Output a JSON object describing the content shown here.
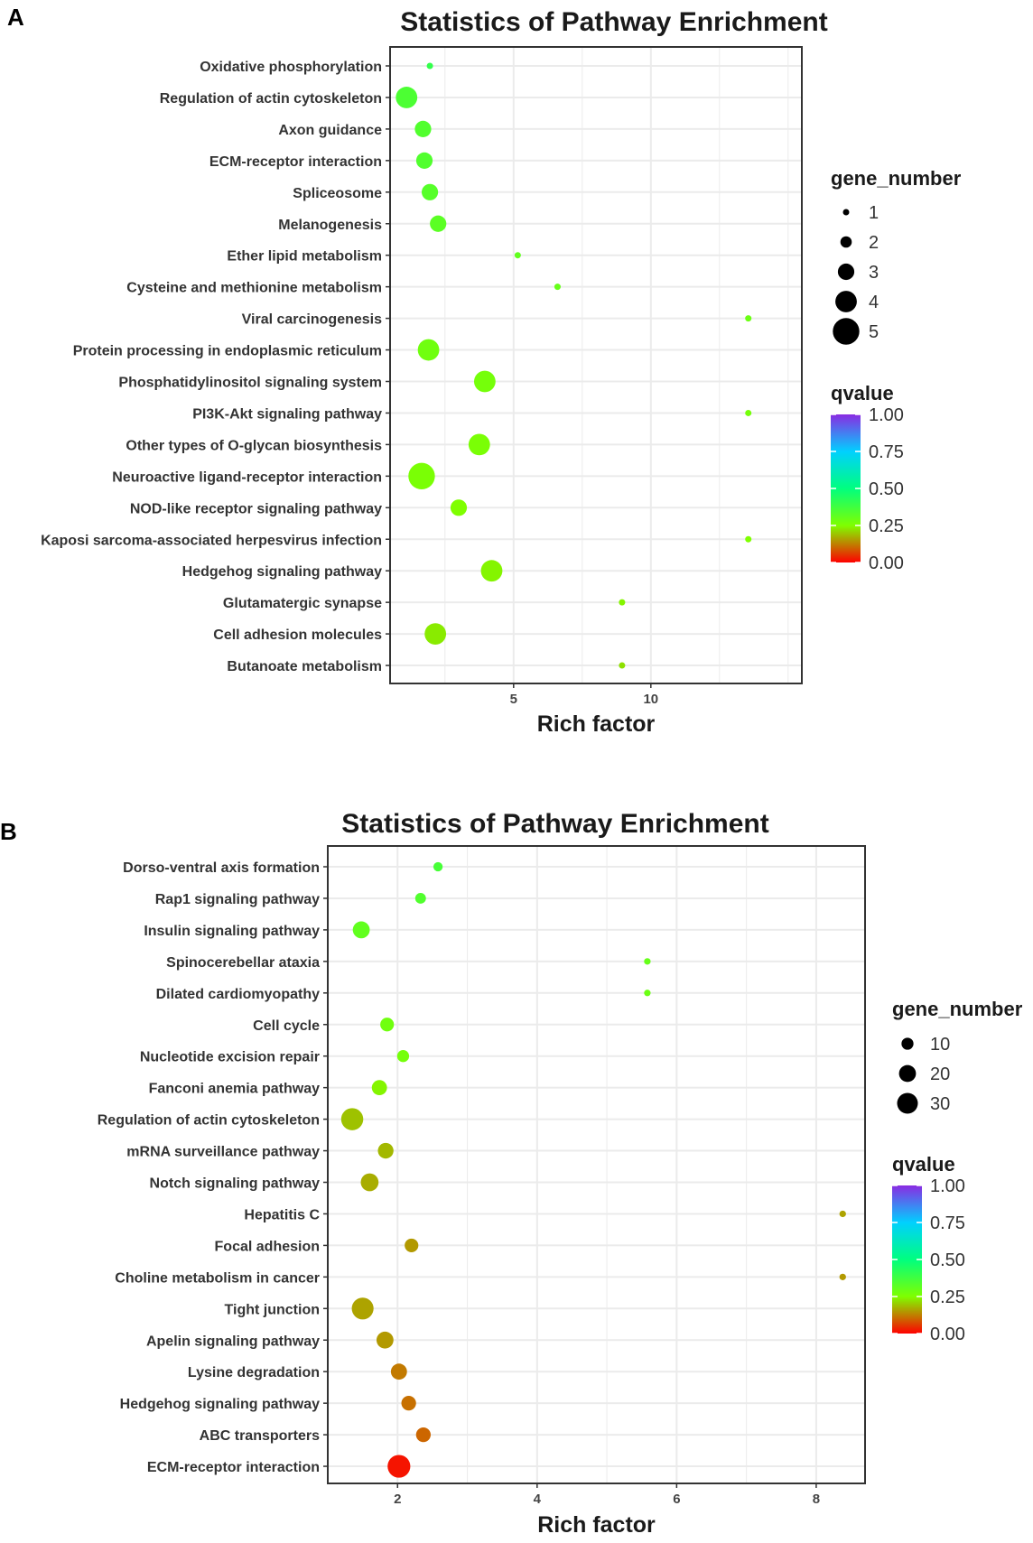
{
  "chart_data": [
    {
      "panel": "A",
      "type": "scatter",
      "title": "Statistics of Pathway Enrichment",
      "xlabel": "Rich factor",
      "ylabel": "",
      "xlim": [
        0.5,
        15.5
      ],
      "xticks": [
        5,
        10
      ],
      "grid": true,
      "categories": [
        "Oxidative phosphorylation",
        "Regulation of actin cytoskeleton",
        "Axon guidance",
        "ECM-receptor interaction",
        "Spliceosome",
        "Melanogenesis",
        "Ether lipid metabolism",
        "Cysteine and methionine metabolism",
        "Viral carcinogenesis",
        "Protein processing in endoplasmic reticulum",
        "Phosphatidylinositol signaling system",
        "PI3K-Akt signaling pathway",
        "Other types of O-glycan biosynthesis",
        "Neuroactive ligand-receptor interaction",
        "NOD-like receptor signaling pathway",
        "Kaposi sarcoma-associated herpesvirus infection",
        "Hedgehog signaling pathway",
        "Glutamatergic synapse",
        "Cell adhesion molecules",
        "Butanoate metabolism"
      ],
      "points": [
        {
          "x": 1.95,
          "gene_number": 1,
          "qvalue": 0.4
        },
        {
          "x": 1.1,
          "gene_number": 4,
          "qvalue": 0.35
        },
        {
          "x": 1.7,
          "gene_number": 3,
          "qvalue": 0.34
        },
        {
          "x": 1.75,
          "gene_number": 3,
          "qvalue": 0.34
        },
        {
          "x": 1.95,
          "gene_number": 3,
          "qvalue": 0.33
        },
        {
          "x": 2.25,
          "gene_number": 3,
          "qvalue": 0.32
        },
        {
          "x": 5.15,
          "gene_number": 1,
          "qvalue": 0.31
        },
        {
          "x": 6.6,
          "gene_number": 1,
          "qvalue": 0.3
        },
        {
          "x": 13.55,
          "gene_number": 1,
          "qvalue": 0.29
        },
        {
          "x": 1.9,
          "gene_number": 4,
          "qvalue": 0.28
        },
        {
          "x": 3.95,
          "gene_number": 4,
          "qvalue": 0.27
        },
        {
          "x": 13.55,
          "gene_number": 1,
          "qvalue": 0.27
        },
        {
          "x": 3.75,
          "gene_number": 4,
          "qvalue": 0.26
        },
        {
          "x": 1.65,
          "gene_number": 5,
          "qvalue": 0.26
        },
        {
          "x": 3.0,
          "gene_number": 3,
          "qvalue": 0.25
        },
        {
          "x": 13.55,
          "gene_number": 1,
          "qvalue": 0.25
        },
        {
          "x": 4.2,
          "gene_number": 4,
          "qvalue": 0.24
        },
        {
          "x": 8.95,
          "gene_number": 1,
          "qvalue": 0.24
        },
        {
          "x": 2.15,
          "gene_number": 4,
          "qvalue": 0.23
        },
        {
          "x": 8.95,
          "gene_number": 1,
          "qvalue": 0.22
        }
      ],
      "size_legend": {
        "title": "gene_number",
        "values": [
          1,
          2,
          3,
          4,
          5
        ]
      },
      "color_legend": {
        "title": "qvalue",
        "ticks": [
          "1.00",
          "0.75",
          "0.50",
          "0.25",
          "0.00"
        ]
      }
    },
    {
      "panel": "B",
      "type": "scatter",
      "title": "Statistics of Pathway Enrichment",
      "xlabel": "Rich factor",
      "ylabel": "",
      "xlim": [
        1.0,
        8.7
      ],
      "xticks": [
        2,
        4,
        6,
        8
      ],
      "grid": true,
      "categories": [
        "Dorso-ventral axis formation",
        "Rap1 signaling pathway",
        "Insulin signaling pathway",
        "Spinocerebellar ataxia",
        "Dilated cardiomyopathy",
        "Cell cycle",
        "Nucleotide excision repair",
        "Fanconi anemia pathway",
        "Regulation of actin cytoskeleton",
        "mRNA surveillance pathway",
        "Notch signaling pathway",
        "Hepatitis C",
        "Focal adhesion",
        "Choline metabolism in cancer",
        "Tight junction",
        "Apelin signaling pathway",
        "Lysine degradation",
        "Hedgehog signaling pathway",
        "ABC transporters",
        "ECM-receptor interaction"
      ],
      "points": [
        {
          "x": 2.58,
          "gene_number": 6,
          "qvalue": 0.36
        },
        {
          "x": 2.33,
          "gene_number": 8,
          "qvalue": 0.34
        },
        {
          "x": 1.48,
          "gene_number": 20,
          "qvalue": 0.31
        },
        {
          "x": 5.58,
          "gene_number": 3,
          "qvalue": 0.3
        },
        {
          "x": 5.58,
          "gene_number": 3,
          "qvalue": 0.29
        },
        {
          "x": 1.85,
          "gene_number": 13,
          "qvalue": 0.28
        },
        {
          "x": 2.08,
          "gene_number": 10,
          "qvalue": 0.27
        },
        {
          "x": 1.74,
          "gene_number": 16,
          "qvalue": 0.24
        },
        {
          "x": 1.35,
          "gene_number": 34,
          "qvalue": 0.19
        },
        {
          "x": 1.83,
          "gene_number": 17,
          "qvalue": 0.18
        },
        {
          "x": 1.6,
          "gene_number": 22,
          "qvalue": 0.17
        },
        {
          "x": 8.38,
          "gene_number": 3,
          "qvalue": 0.16
        },
        {
          "x": 2.2,
          "gene_number": 13,
          "qvalue": 0.15
        },
        {
          "x": 8.38,
          "gene_number": 3,
          "qvalue": 0.15
        },
        {
          "x": 1.5,
          "gene_number": 33,
          "qvalue": 0.16
        },
        {
          "x": 1.82,
          "gene_number": 20,
          "qvalue": 0.15
        },
        {
          "x": 2.02,
          "gene_number": 18,
          "qvalue": 0.12
        },
        {
          "x": 2.16,
          "gene_number": 15,
          "qvalue": 0.11
        },
        {
          "x": 2.37,
          "gene_number": 15,
          "qvalue": 0.1
        },
        {
          "x": 2.02,
          "gene_number": 36,
          "qvalue": 0.02
        }
      ],
      "size_legend": {
        "title": "gene_number",
        "values": [
          10,
          20,
          30
        ]
      },
      "color_legend": {
        "title": "qvalue",
        "ticks": [
          "1.00",
          "0.75",
          "0.50",
          "0.25",
          "0.00"
        ]
      }
    }
  ],
  "panel_labels": [
    "A",
    "B"
  ]
}
